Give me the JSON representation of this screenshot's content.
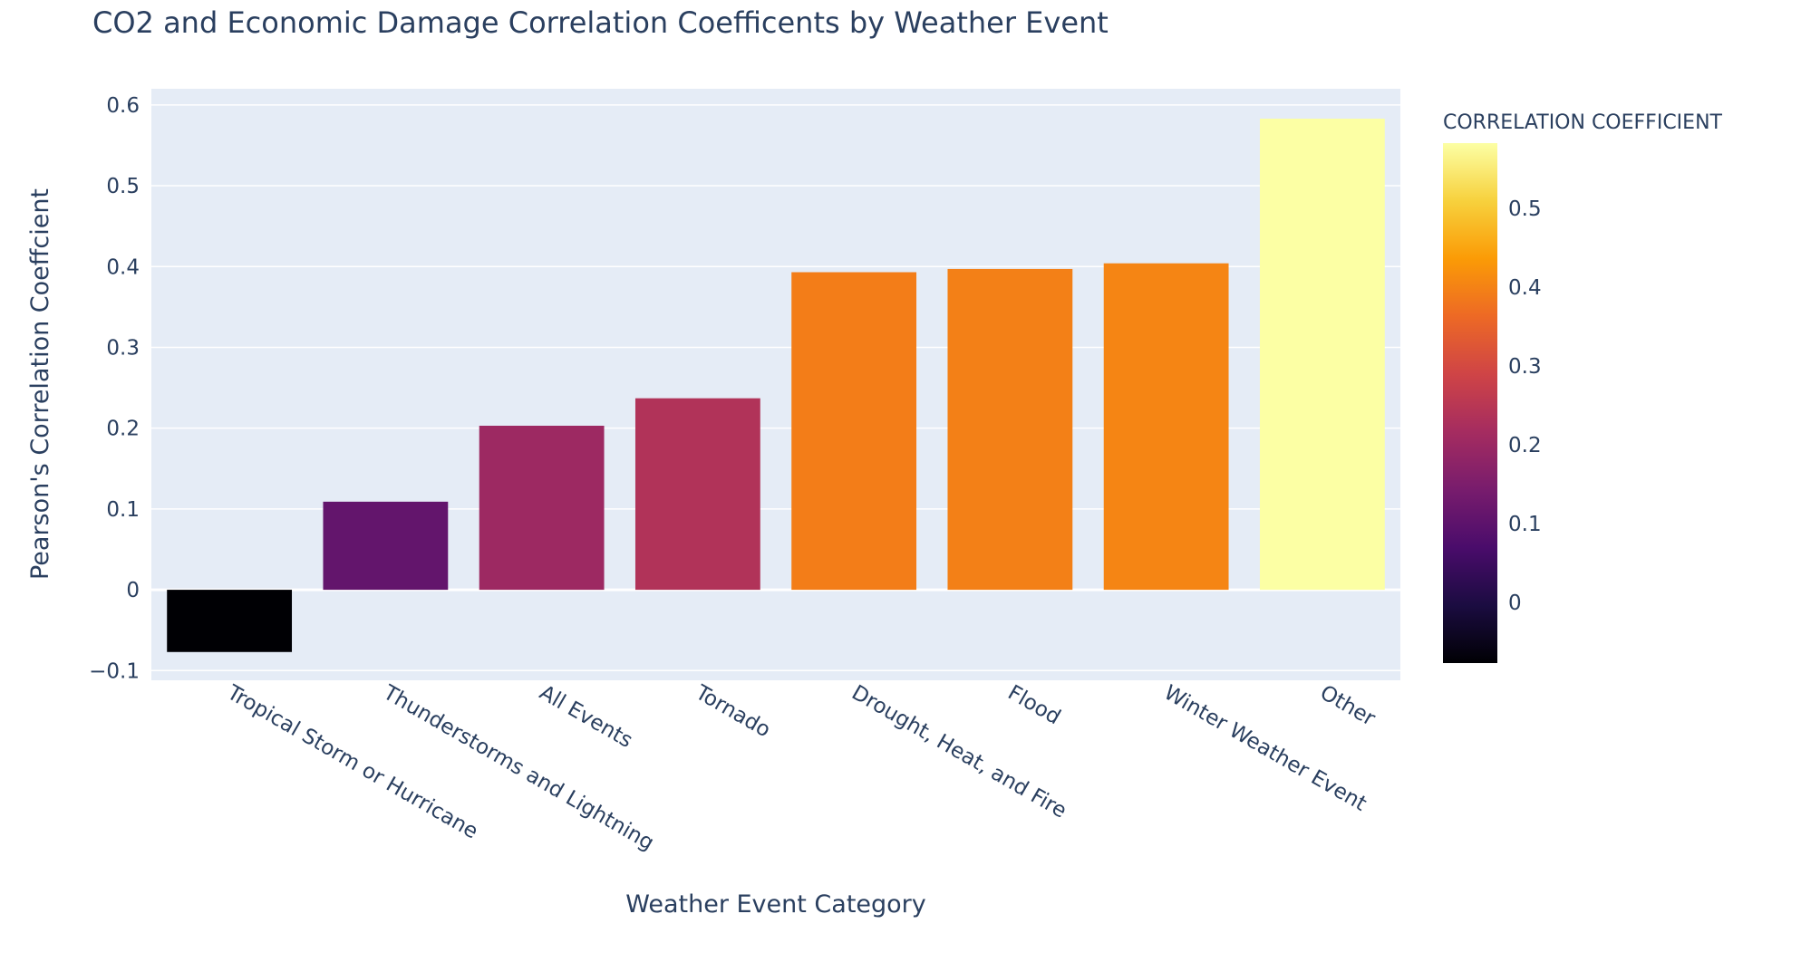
{
  "chart_data": {
    "type": "bar",
    "title": "CO2 and Economic Damage Correlation Coefficents by Weather Event",
    "xlabel": "Weather Event Category",
    "ylabel": "Pearson's Correlation Coeffcient",
    "categories": [
      "Tropical Storm or Hurricane",
      "Thunderstorms and Lightning",
      "All Events",
      "Tornado",
      "Drought, Heat, and Fire",
      "Flood",
      "Winter Weather Event",
      "Other"
    ],
    "values": [
      -0.077,
      0.109,
      0.203,
      0.237,
      0.393,
      0.397,
      0.404,
      0.583
    ],
    "ylim": [
      -0.112,
      0.62
    ],
    "yticks": [
      -0.1,
      0,
      0.1,
      0.2,
      0.3,
      0.4,
      0.5,
      0.6
    ],
    "ytick_labels": [
      "−0.1",
      "0",
      "0.1",
      "0.2",
      "0.3",
      "0.4",
      "0.5",
      "0.6"
    ],
    "grid": true,
    "colorbar": {
      "title": "CORRELATION COEFFICIENT",
      "range": [
        -0.077,
        0.583
      ],
      "ticks": [
        0,
        0.1,
        0.2,
        0.3,
        0.4,
        0.5
      ],
      "tick_labels": [
        "0",
        "0.1",
        "0.2",
        "0.3",
        "0.4",
        "0.5"
      ],
      "colorscale": "inferno",
      "placement": "right"
    },
    "colors": {
      "plot_background": "#e5ecf6",
      "grid": "#ffffff",
      "text": "#2a3f5f"
    }
  }
}
